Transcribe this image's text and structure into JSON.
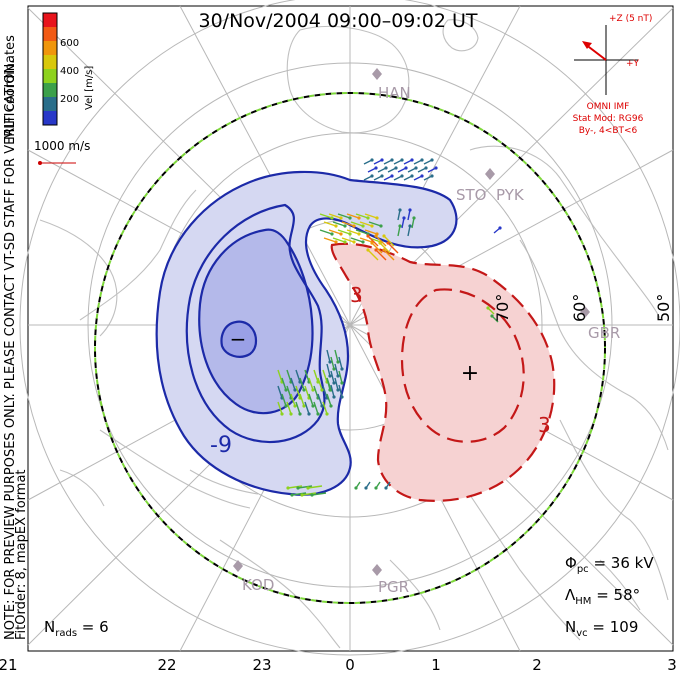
{
  "title": "30/Nov/2004 09:00–09:02 UT",
  "coordinate_label": "MLT coordinates",
  "notice": "NOTE: FOR PREVIEW PURPOSES ONLY. PLEASE CONTACT VT-SD STAFF FOR VERIFICATION.",
  "fit_label": "FitOrder: 8, mapEX format",
  "colorbar": {
    "label": "Vel [m/s]",
    "ticks": [
      "600",
      "400",
      "200"
    ],
    "colors": [
      "#e8141c",
      "#f25a14",
      "#f0960c",
      "#d8c80c",
      "#8ed21e",
      "#3ca04a",
      "#2a6e8a",
      "#2838c8"
    ]
  },
  "scale_vector": {
    "label": "1000 m/s",
    "color": "#cc0000"
  },
  "imf": {
    "z_label": "+Z (5 nT)",
    "y_label": "+Y",
    "source": "OMNI IMF",
    "model": "Stat Mod: RG96",
    "condition": "By-, 4<BT<6",
    "color": "#dd0000"
  },
  "stations": [
    "HAN",
    "STO",
    "PYK",
    "GBR",
    "KOD",
    "PGR"
  ],
  "latitude_labels": [
    "70°",
    "60°",
    "50°"
  ],
  "contour_labels": {
    "negative": "-9",
    "positive": "3"
  },
  "extrema": {
    "min": "−",
    "max": "+"
  },
  "mlt_ticks": [
    "21",
    "22",
    "23",
    "0",
    "1",
    "2",
    "3"
  ],
  "stats": {
    "phi_symbol": "Φ",
    "phi_sub": "pc",
    "phi_value": "36 kV",
    "lambda_symbol": "Λ",
    "lambda_sub": "HM",
    "lambda_value": "58°",
    "nvc_symbol": "N",
    "nvc_sub": "vc",
    "nvc_value": "109",
    "nrads_symbol": "N",
    "nrads_sub": "rads",
    "nrads_value": "6"
  },
  "colors": {
    "negative_contour": "#1c2aa8",
    "negative_fill": "#c8cdf0",
    "negative_core": "#9aa0e6",
    "positive_contour": "#c41818",
    "positive_fill": "#f6cfcf",
    "grid": "#b8b8b8",
    "coast": "#c0c0c0",
    "station": "#a89aa8"
  }
}
